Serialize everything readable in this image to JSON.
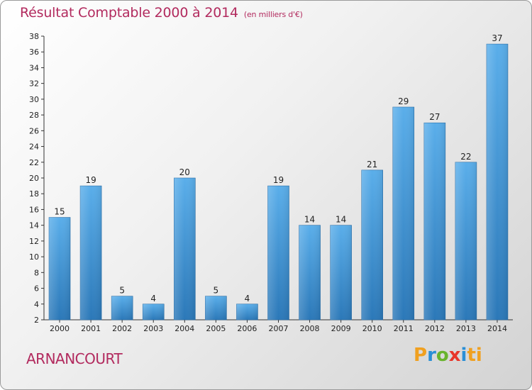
{
  "header": {
    "title": "Résultat Comptable 2000 à 2014",
    "subtitle": "(en milliers d'€)"
  },
  "footer": {
    "commune": "ARNANCOURT",
    "logo_letters": [
      "P",
      "r",
      "o",
      "x",
      "i",
      "t",
      "i"
    ]
  },
  "colors": {
    "title": "#b22a5e",
    "bar_top": "#5aaeea",
    "bar_bottom": "#2b78b8"
  },
  "chart_data": {
    "type": "bar",
    "title": "Résultat Comptable 2000 à 2014",
    "subtitle": "(en milliers d'€)",
    "categories": [
      "2000",
      "2001",
      "2002",
      "2003",
      "2004",
      "2005",
      "2006",
      "2007",
      "2008",
      "2009",
      "2010",
      "2011",
      "2012",
      "2013",
      "2014"
    ],
    "values": [
      15,
      19,
      5,
      4,
      20,
      5,
      4,
      19,
      14,
      14,
      21,
      29,
      27,
      22,
      37
    ],
    "xlabel": "",
    "ylabel": "",
    "ylim": [
      2,
      38
    ],
    "yticks": [
      2,
      4,
      6,
      8,
      10,
      12,
      14,
      16,
      18,
      20,
      22,
      24,
      26,
      28,
      30,
      32,
      34,
      36,
      38
    ],
    "grid": false
  }
}
